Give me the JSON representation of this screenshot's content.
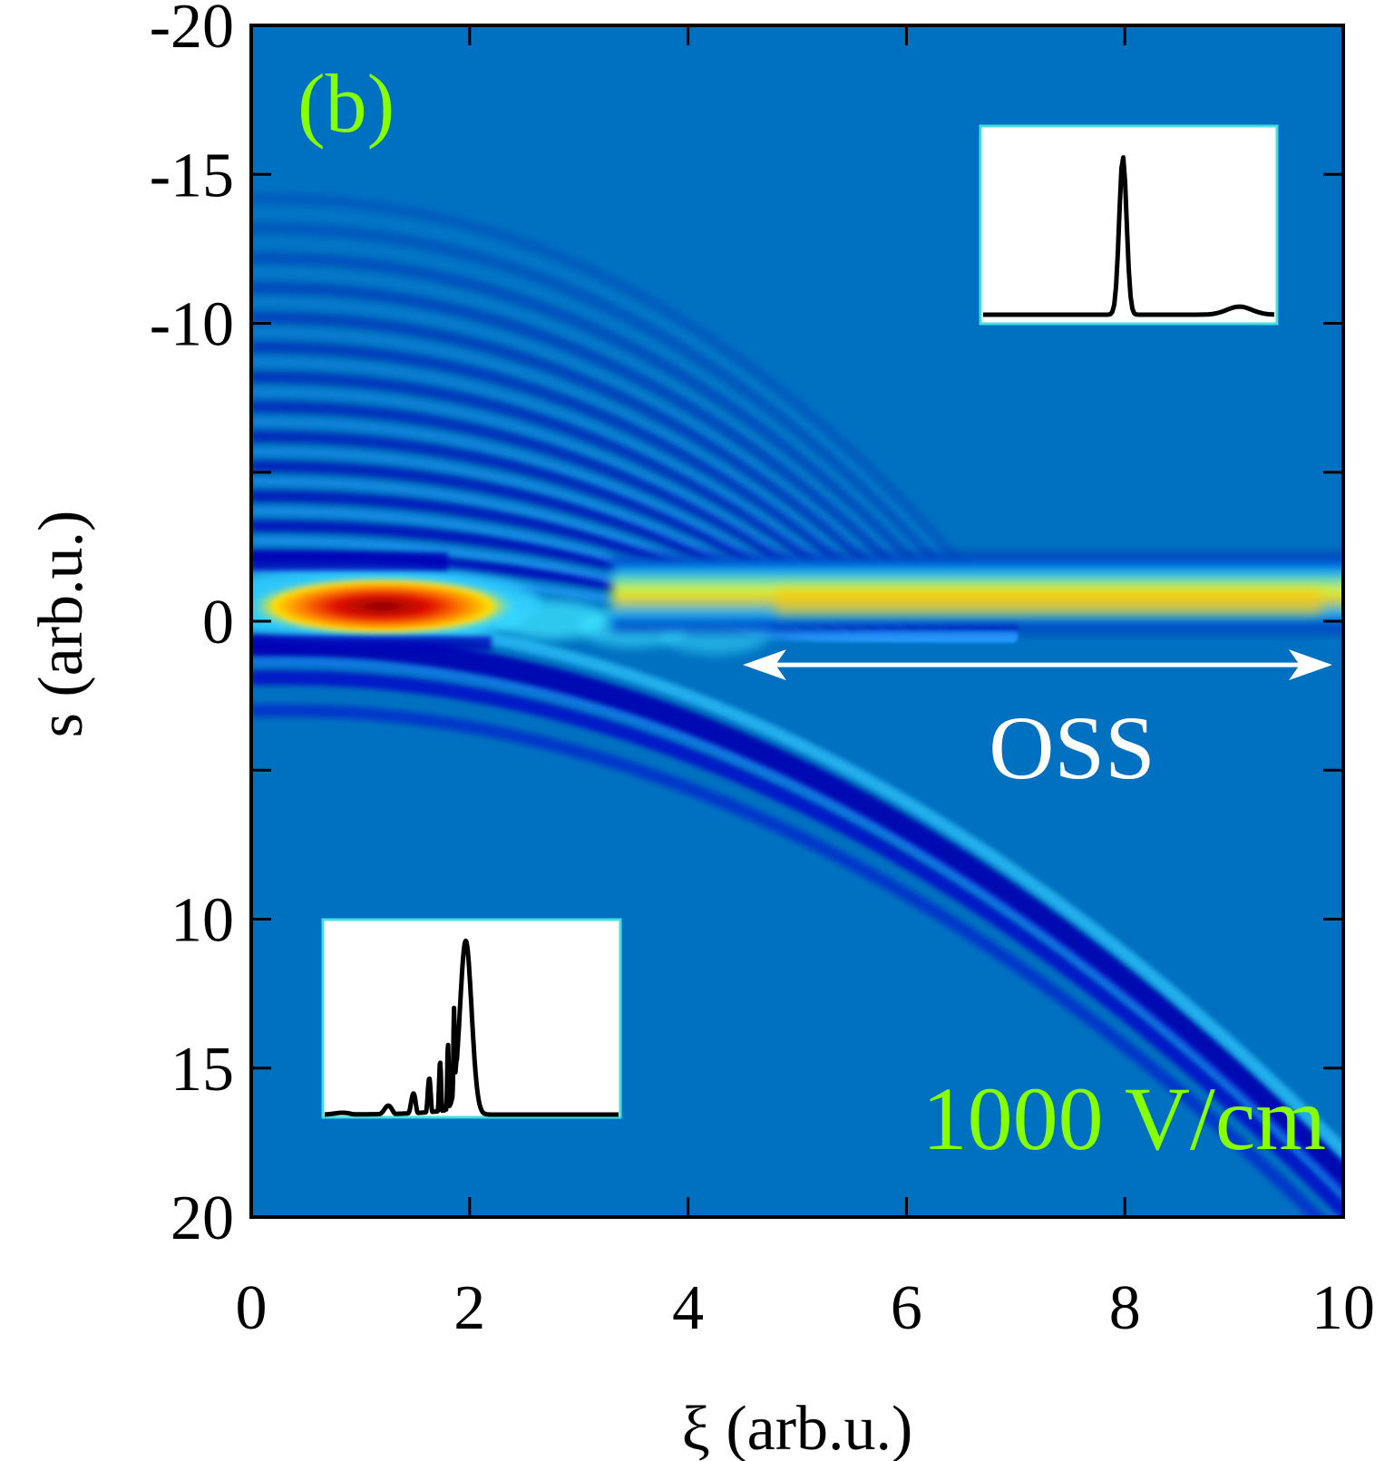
{
  "panel_label": "(b)",
  "field_label": "1000 V/cm",
  "oss_label": "OSS",
  "colors": {
    "accent_green": "#88ff00",
    "background_blue": "#0070c0",
    "annotation_white": "#ffffff",
    "inset_border": "#44e0e0"
  },
  "chart_data": {
    "type": "heatmap",
    "title": "",
    "xlabel": "ξ (arb.u.)",
    "ylabel": "s (arb.u.)",
    "xlim": [
      0,
      10
    ],
    "ylim": [
      -20,
      20
    ],
    "y_inverted": true,
    "x_ticks": [
      0,
      2,
      4,
      6,
      8,
      10
    ],
    "x_tick_labels": [
      "0",
      "2",
      "4",
      "6",
      "8",
      "10"
    ],
    "y_ticks": [
      -20,
      -15,
      -10,
      -5,
      0,
      5,
      10,
      15,
      20
    ],
    "y_tick_labels": [
      "-20",
      "-15",
      "-10",
      "",
      "0",
      "",
      "10",
      "15",
      "20"
    ],
    "colormap": "jet",
    "grid": false,
    "features": {
      "main_soliton_center_s": -0.5,
      "main_soliton_peak_xi": 1.2,
      "stationary_band_start_xi": 4.5,
      "diverging_beam": "curves from s≈0 at ξ≈2 to s≈20 at ξ≈10",
      "fringe_region": "s from -14 to -1 for ξ < 5"
    },
    "oss_arrow_range_xi": [
      5.0,
      9.9
    ],
    "oss_arrow_s": 1.1,
    "insets": [
      {
        "position": "top-right",
        "description": "single narrow peak profile"
      },
      {
        "position": "bottom-left",
        "description": "peak with oscillating tail profile"
      }
    ]
  }
}
